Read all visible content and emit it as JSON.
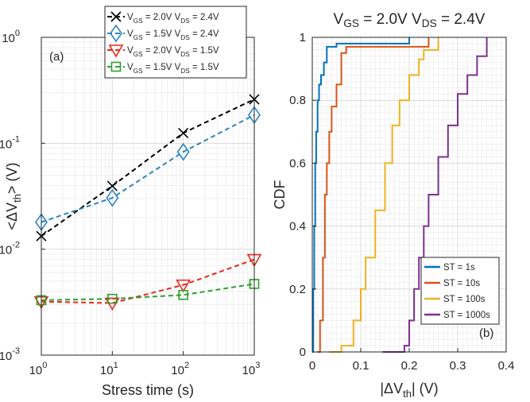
{
  "chart_data": [
    {
      "type": "line",
      "panel_label": "(a)",
      "xlabel": "Stress time (s)",
      "ylabel": "<ΔVth> (V)",
      "xscale": "log",
      "yscale": "log",
      "xlim": [
        1,
        1000
      ],
      "ylim": [
        0.001,
        1
      ],
      "grid": true,
      "legend_position": "top",
      "x_ticks": [
        {
          "base": "10",
          "exp": "0"
        },
        {
          "base": "10",
          "exp": "1"
        },
        {
          "base": "10",
          "exp": "2"
        },
        {
          "base": "10",
          "exp": "3"
        }
      ],
      "y_ticks": [
        {
          "base": "10",
          "exp": "0"
        },
        {
          "base": "10",
          "exp": "-1"
        },
        {
          "base": "10",
          "exp": "-2"
        },
        {
          "base": "10",
          "exp": "-3"
        }
      ],
      "x": [
        1,
        10,
        100,
        1000
      ],
      "series": [
        {
          "name": "VGS = 2.0V VDS = 2.4V",
          "color": "#000000",
          "marker": "x",
          "values": [
            0.0133,
            0.0395,
            0.125,
            0.26
          ]
        },
        {
          "name": "VGS = 1.5V VDS = 2.4V",
          "color": "#2e86c1",
          "marker": "diamond",
          "values": [
            0.018,
            0.0305,
            0.083,
            0.185
          ]
        },
        {
          "name": "VGS = 2.0V VDS = 1.5V",
          "color": "#e8291c",
          "marker": "triangle-down",
          "values": [
            0.0032,
            0.0031,
            0.0046,
            0.008
          ]
        },
        {
          "name": "VGS = 1.5V VDS = 1.5V",
          "color": "#2ca02c",
          "marker": "square",
          "values": [
            0.0033,
            0.0034,
            0.0037,
            0.0047
          ]
        }
      ]
    },
    {
      "type": "line",
      "panel_label": "(b)",
      "title": "VGS = 2.0V VDS = 2.4V",
      "xlabel": "|ΔVth| (V)",
      "ylabel": "CDF",
      "xlim": [
        0,
        0.4
      ],
      "ylim": [
        0,
        1
      ],
      "grid": true,
      "legend_position": "bottom-right",
      "x_tick_labels": [
        "0",
        "0.1",
        "0.2",
        "0.3",
        "0.4"
      ],
      "y_tick_labels": [
        "0",
        "0.2",
        "0.4",
        "0.6",
        "0.8",
        "1"
      ],
      "series": [
        {
          "name": "ST = 1s",
          "color": "#0072bd",
          "x": [
            0.0,
            0.002,
            0.004,
            0.006,
            0.008,
            0.011,
            0.014,
            0.018,
            0.024,
            0.03,
            0.05,
            0.1,
            0.2
          ],
          "values": [
            0.0,
            0.2,
            0.4,
            0.6,
            0.7,
            0.8,
            0.85,
            0.88,
            0.92,
            0.97,
            0.98,
            0.98,
            1.0
          ]
        },
        {
          "name": "ST = 10s",
          "color": "#d95319",
          "x": [
            0.01,
            0.016,
            0.022,
            0.026,
            0.03,
            0.035,
            0.04,
            0.05,
            0.06,
            0.07,
            0.12,
            0.2,
            0.24
          ],
          "values": [
            0.0,
            0.1,
            0.3,
            0.5,
            0.6,
            0.7,
            0.78,
            0.85,
            0.95,
            0.97,
            0.97,
            0.97,
            1.0
          ]
        },
        {
          "name": "ST = 100s",
          "color": "#edb120",
          "x": [
            0.035,
            0.06,
            0.085,
            0.1,
            0.11,
            0.13,
            0.15,
            0.165,
            0.18,
            0.2,
            0.22,
            0.23,
            0.26
          ],
          "values": [
            0.0,
            0.02,
            0.1,
            0.2,
            0.3,
            0.45,
            0.6,
            0.72,
            0.8,
            0.88,
            0.93,
            0.96,
            1.0
          ]
        },
        {
          "name": "ST = 1000s",
          "color": "#7e2f8e",
          "x": [
            0.145,
            0.19,
            0.2,
            0.21,
            0.22,
            0.23,
            0.24,
            0.26,
            0.28,
            0.3,
            0.32,
            0.34,
            0.36
          ],
          "values": [
            0.0,
            0.02,
            0.1,
            0.2,
            0.3,
            0.4,
            0.5,
            0.62,
            0.72,
            0.82,
            0.88,
            0.94,
            1.0
          ]
        }
      ]
    }
  ]
}
